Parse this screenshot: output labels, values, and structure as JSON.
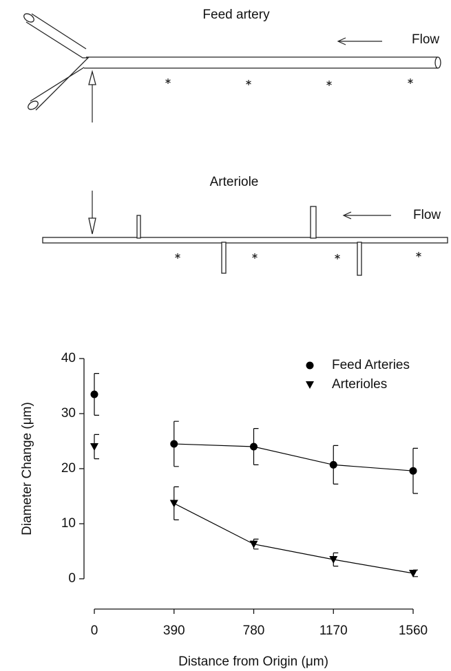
{
  "diagram": {
    "feed_artery": {
      "title": "Feed artery",
      "flow": "Flow"
    },
    "arteriole": {
      "title": "Arteriole",
      "flow": "Flow"
    }
  },
  "chart_data": {
    "type": "scatter",
    "x_label": "Distance from Origin (μm)",
    "y_label": "Diameter Change (μm)",
    "x": [
      0,
      390,
      780,
      1170,
      1560
    ],
    "series": [
      {
        "name": "Feed Arteries",
        "marker": "circle",
        "color": "#000000",
        "values": [
          33.5,
          24.5,
          24,
          20.7,
          19.6
        ],
        "errors": [
          3.8,
          4.1,
          3.3,
          3.5,
          4.1
        ]
      },
      {
        "name": "Arterioles",
        "marker": "triangle-down",
        "color": "#000000",
        "values": [
          24,
          13.7,
          6.3,
          3.5,
          1
        ],
        "errors": [
          2.2,
          3,
          0.9,
          1.2,
          0.6
        ]
      }
    ],
    "xlim": [
      0,
      1560
    ],
    "ylim": [
      0,
      40
    ],
    "xticks": [
      0,
      390,
      780,
      1170,
      1560
    ],
    "yticks": [
      0,
      10,
      20,
      30,
      40
    ],
    "legend": "upper right"
  }
}
